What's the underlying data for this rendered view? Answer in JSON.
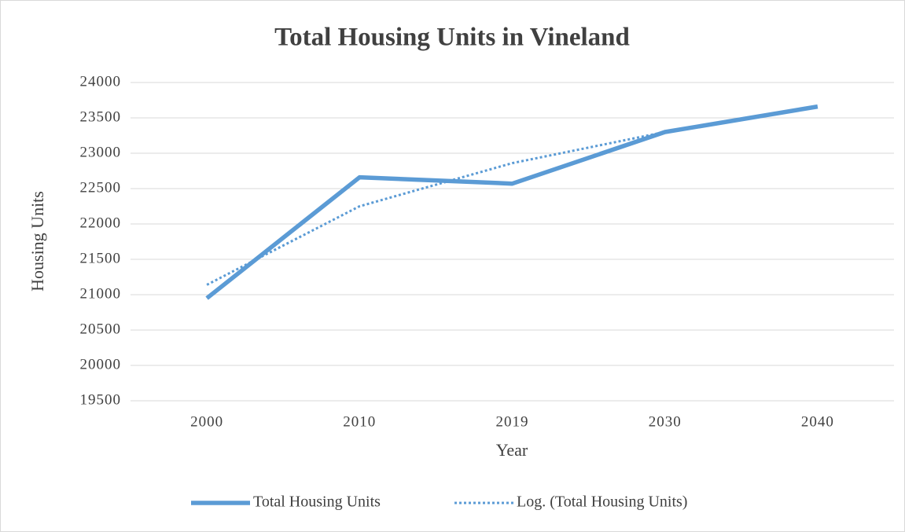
{
  "chart_data": {
    "type": "line",
    "title": "Total Housing Units in Vineland",
    "x_label": "Year",
    "y_label": "Housing Units",
    "categories": [
      "2000",
      "2010",
      "2019",
      "2030",
      "2040"
    ],
    "series": [
      {
        "name": "Total Housing Units",
        "color": "#5b9bd5",
        "dash": "solid",
        "values": [
          20950,
          22660,
          22570,
          23300,
          23660
        ]
      },
      {
        "name": "Log. (Total Housing Units)",
        "color": "#5b9bd5",
        "dash": "dotted",
        "values": [
          21140,
          22250,
          22860,
          23300,
          null
        ]
      }
    ],
    "ylim": [
      19500,
      24000
    ],
    "yticks": [
      19500,
      20000,
      20500,
      21000,
      21500,
      22000,
      22500,
      23000,
      23500,
      24000
    ],
    "grid": true,
    "legend": "bottom"
  }
}
